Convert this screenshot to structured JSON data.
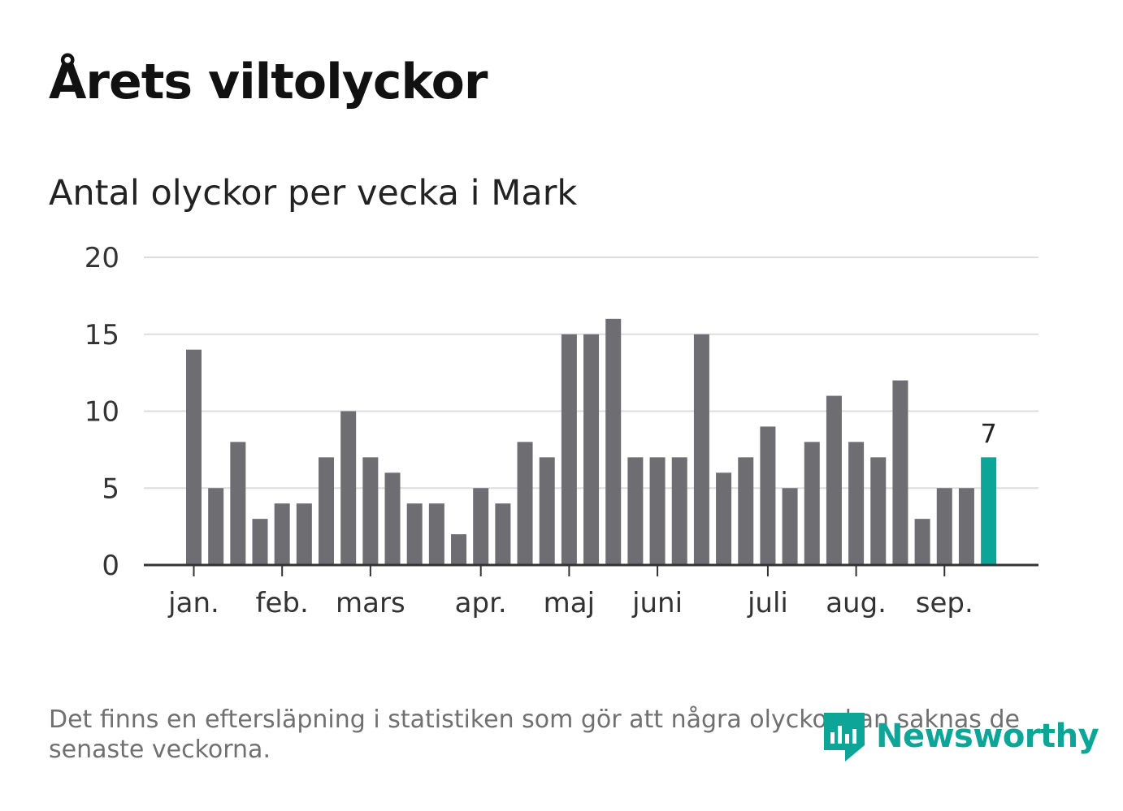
{
  "header": {
    "title": "Årets viltolyckor",
    "subtitle": "Antal olyckor per vecka i Mark"
  },
  "footer": {
    "note": "Det finns en eftersläpning i statistiken som gör att några olyckor kan saknas de senaste veckorna.",
    "brand": "Newsworthy",
    "brand_icon": "newsworthy-logo-icon"
  },
  "colors": {
    "bar": "#6e6d72",
    "highlight": "#0ca597",
    "grid": "#dddddd",
    "axis": "#333333"
  },
  "chart_data": {
    "type": "bar",
    "title": "Årets viltolyckor",
    "subtitle": "Antal olyckor per vecka i Mark",
    "xlabel": "",
    "ylabel": "",
    "ylim": [
      0,
      20
    ],
    "yticks": [
      0,
      5,
      10,
      15,
      20
    ],
    "grid": true,
    "values": [
      14,
      5,
      8,
      3,
      4,
      4,
      7,
      10,
      7,
      6,
      4,
      4,
      2,
      5,
      4,
      8,
      7,
      15,
      15,
      16,
      7,
      7,
      7,
      15,
      6,
      7,
      9,
      5,
      8,
      11,
      8,
      7,
      12,
      3,
      5,
      5,
      7
    ],
    "highlight": {
      "index": 36,
      "label": "7"
    },
    "month_labels": [
      {
        "label": "jan.",
        "at": 0
      },
      {
        "label": "feb.",
        "at": 4
      },
      {
        "label": "mars",
        "at": 8
      },
      {
        "label": "apr.",
        "at": 13
      },
      {
        "label": "maj",
        "at": 17
      },
      {
        "label": "juni",
        "at": 21
      },
      {
        "label": "juli",
        "at": 26
      },
      {
        "label": "aug.",
        "at": 30
      },
      {
        "label": "sep.",
        "at": 34
      }
    ]
  }
}
